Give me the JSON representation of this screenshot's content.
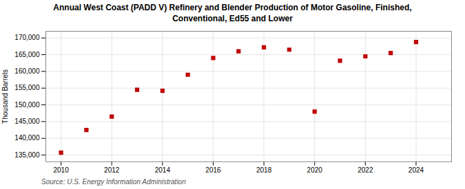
{
  "chart_data": {
    "type": "scatter",
    "title": "Annual West Coast (PADD V) Refinery and Blender Production of Motor Gasoline, Finished,\nConventional, Ed55 and Lower",
    "ylabel": "Thousand Barrels",
    "annotations": [
      "Source: U.S. Energy Information Administration"
    ],
    "x": [
      2010,
      2011,
      2012,
      2013,
      2014,
      2015,
      2016,
      2017,
      2018,
      2019,
      2020,
      2021,
      2022,
      2023,
      2024
    ],
    "values": [
      135700,
      142500,
      146500,
      154500,
      154200,
      159000,
      164000,
      166000,
      167200,
      166500,
      148000,
      163200,
      164500,
      165500,
      168800
    ],
    "color": "#c00000",
    "marker": "square",
    "xlim": [
      2009.4,
      2025.4
    ],
    "xticks": [
      2010,
      2012,
      2014,
      2016,
      2018,
      2020,
      2022,
      2024
    ],
    "ylim": [
      133000,
      172000
    ],
    "yticks": [
      {
        "value": 135000,
        "label": "135,000"
      },
      {
        "value": 140000,
        "label": "140,000"
      },
      {
        "value": 145000,
        "label": "145,000"
      },
      {
        "value": 150000,
        "label": "150,000"
      },
      {
        "value": 155000,
        "label": "155,000"
      },
      {
        "value": 160000,
        "label": "160,000"
      },
      {
        "value": 165000,
        "label": "165,000"
      },
      {
        "value": 170000,
        "label": "170,000"
      }
    ],
    "grid": true
  }
}
